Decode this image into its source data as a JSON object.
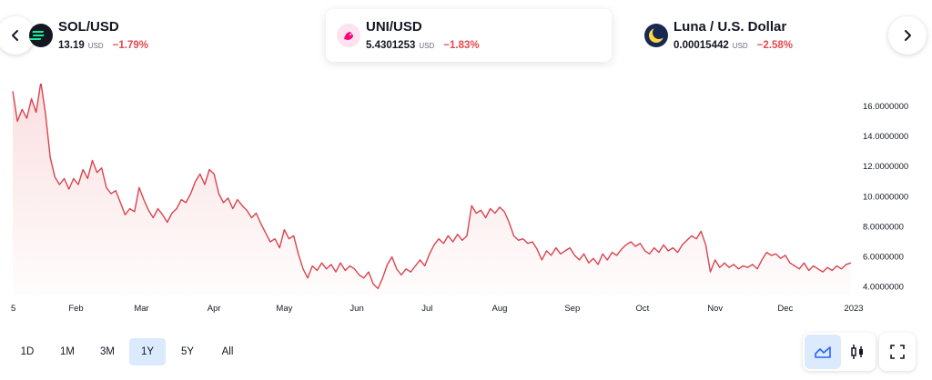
{
  "tickers": [
    {
      "name": "SOL/USD",
      "price": "13.19",
      "currency": "USD",
      "change": "−1.79%",
      "icon": "solana-icon",
      "color": "#131722"
    },
    {
      "name": "UNI/USD",
      "price": "5.4301253",
      "currency": "USD",
      "change": "−1.83%",
      "icon": "uniswap-icon",
      "color": "#ff007a"
    },
    {
      "name": "Luna / U.S. Dollar",
      "price": "0.00015442",
      "currency": "USD",
      "change": "−2.58%",
      "icon": "terra-luna-icon",
      "color": "#172852"
    }
  ],
  "nav": {
    "prev_icon": "chevron-left-icon",
    "next_icon": "chevron-right-icon"
  },
  "range_buttons": [
    "1D",
    "1M",
    "3M",
    "1Y",
    "5Y",
    "All"
  ],
  "active_range": "1Y",
  "tools": {
    "area_icon": "area-chart-icon",
    "candle_icon": "candlestick-icon",
    "fullscreen_icon": "fullscreen-icon"
  },
  "colors": {
    "line": "#d9444e",
    "negative": "#e5484d",
    "active_bg": "#dbeafc"
  },
  "chart_data": {
    "type": "area",
    "title": "",
    "xlabel": "",
    "ylabel": "",
    "ylim": [
      3.5,
      17.5
    ],
    "yticks": [
      4,
      6,
      8,
      10,
      12,
      14,
      16
    ],
    "ytick_labels": [
      "4.0000000",
      "6.0000000",
      "8.0000000",
      "10.0000000",
      "12.0000000",
      "14.0000000",
      "16.0000000"
    ],
    "xlim": [
      5,
      365
    ],
    "xticks": [
      {
        "label": "5",
        "day": 5
      },
      {
        "label": "Feb",
        "day": 32
      },
      {
        "label": "Mar",
        "day": 60
      },
      {
        "label": "Apr",
        "day": 91
      },
      {
        "label": "May",
        "day": 121
      },
      {
        "label": "Jun",
        "day": 152
      },
      {
        "label": "Jul",
        "day": 182
      },
      {
        "label": "Aug",
        "day": 213
      },
      {
        "label": "Sep",
        "day": 244
      },
      {
        "label": "Oct",
        "day": 274
      },
      {
        "label": "Nov",
        "day": 305
      },
      {
        "label": "Dec",
        "day": 335
      },
      {
        "label": "2023",
        "day": 366
      }
    ],
    "series": [
      {
        "values": [
          [
            5,
            17.0
          ],
          [
            7,
            15.0
          ],
          [
            9,
            15.8
          ],
          [
            11,
            15.2
          ],
          [
            13,
            16.5
          ],
          [
            15,
            15.6
          ],
          [
            17,
            17.6
          ],
          [
            19,
            15.5
          ],
          [
            21,
            12.6
          ],
          [
            23,
            11.3
          ],
          [
            25,
            10.8
          ],
          [
            27,
            11.2
          ],
          [
            29,
            10.5
          ],
          [
            31,
            11.2
          ],
          [
            33,
            10.8
          ],
          [
            35,
            11.8
          ],
          [
            37,
            11.2
          ],
          [
            39,
            12.4
          ],
          [
            41,
            11.6
          ],
          [
            43,
            11.9
          ],
          [
            45,
            10.6
          ],
          [
            47,
            10.2
          ],
          [
            49,
            10.4
          ],
          [
            51,
            9.6
          ],
          [
            53,
            8.8
          ],
          [
            55,
            9.2
          ],
          [
            57,
            9.0
          ],
          [
            59,
            10.6
          ],
          [
            61,
            9.8
          ],
          [
            63,
            9.1
          ],
          [
            65,
            8.6
          ],
          [
            67,
            9.2
          ],
          [
            69,
            8.8
          ],
          [
            71,
            8.3
          ],
          [
            73,
            8.9
          ],
          [
            75,
            9.2
          ],
          [
            77,
            9.8
          ],
          [
            79,
            9.6
          ],
          [
            81,
            10.2
          ],
          [
            83,
            11.0
          ],
          [
            85,
            11.5
          ],
          [
            87,
            10.8
          ],
          [
            89,
            11.8
          ],
          [
            91,
            11.5
          ],
          [
            93,
            10.2
          ],
          [
            95,
            9.6
          ],
          [
            97,
            9.9
          ],
          [
            99,
            9.2
          ],
          [
            101,
            9.8
          ],
          [
            103,
            9.4
          ],
          [
            105,
            9.1
          ],
          [
            107,
            8.6
          ],
          [
            109,
            8.9
          ],
          [
            111,
            8.2
          ],
          [
            113,
            7.6
          ],
          [
            115,
            7.0
          ],
          [
            117,
            7.2
          ],
          [
            119,
            6.6
          ],
          [
            121,
            7.8
          ],
          [
            123,
            7.2
          ],
          [
            125,
            7.4
          ],
          [
            127,
            6.2
          ],
          [
            129,
            5.2
          ],
          [
            131,
            4.6
          ],
          [
            133,
            5.4
          ],
          [
            135,
            5.1
          ],
          [
            137,
            5.6
          ],
          [
            139,
            5.2
          ],
          [
            141,
            5.5
          ],
          [
            143,
            5.0
          ],
          [
            145,
            5.6
          ],
          [
            147,
            5.1
          ],
          [
            149,
            5.4
          ],
          [
            151,
            5.2
          ],
          [
            153,
            4.8
          ],
          [
            155,
            4.6
          ],
          [
            157,
            5.0
          ],
          [
            159,
            4.2
          ],
          [
            161,
            3.9
          ],
          [
            163,
            4.6
          ],
          [
            165,
            5.5
          ],
          [
            167,
            6.0
          ],
          [
            169,
            5.2
          ],
          [
            171,
            4.8
          ],
          [
            173,
            5.2
          ],
          [
            175,
            5.0
          ],
          [
            177,
            5.4
          ],
          [
            179,
            5.8
          ],
          [
            181,
            5.4
          ],
          [
            183,
            6.2
          ],
          [
            185,
            6.8
          ],
          [
            187,
            7.2
          ],
          [
            189,
            6.9
          ],
          [
            191,
            7.4
          ],
          [
            193,
            7.0
          ],
          [
            195,
            7.5
          ],
          [
            197,
            7.1
          ],
          [
            199,
            7.4
          ],
          [
            201,
            9.4
          ],
          [
            203,
            8.9
          ],
          [
            205,
            9.1
          ],
          [
            207,
            8.6
          ],
          [
            209,
            9.2
          ],
          [
            211,
            8.9
          ],
          [
            213,
            9.3
          ],
          [
            215,
            9.0
          ],
          [
            217,
            8.3
          ],
          [
            219,
            7.4
          ],
          [
            221,
            7.1
          ],
          [
            223,
            7.2
          ],
          [
            225,
            6.9
          ],
          [
            227,
            7.0
          ],
          [
            229,
            6.5
          ],
          [
            231,
            5.8
          ],
          [
            233,
            6.4
          ],
          [
            235,
            6.1
          ],
          [
            237,
            6.6
          ],
          [
            239,
            6.2
          ],
          [
            241,
            6.4
          ],
          [
            243,
            6.6
          ],
          [
            245,
            6.1
          ],
          [
            247,
            5.8
          ],
          [
            249,
            6.2
          ],
          [
            251,
            5.6
          ],
          [
            253,
            5.9
          ],
          [
            255,
            5.5
          ],
          [
            257,
            6.2
          ],
          [
            259,
            5.8
          ],
          [
            261,
            6.3
          ],
          [
            263,
            6.1
          ],
          [
            265,
            6.5
          ],
          [
            267,
            6.8
          ],
          [
            269,
            7.0
          ],
          [
            271,
            6.7
          ],
          [
            273,
            6.9
          ],
          [
            275,
            6.4
          ],
          [
            277,
            6.2
          ],
          [
            279,
            6.6
          ],
          [
            281,
            6.3
          ],
          [
            283,
            6.8
          ],
          [
            285,
            6.4
          ],
          [
            287,
            6.6
          ],
          [
            289,
            6.3
          ],
          [
            291,
            6.8
          ],
          [
            293,
            7.1
          ],
          [
            295,
            7.4
          ],
          [
            297,
            7.2
          ],
          [
            299,
            7.7
          ],
          [
            301,
            6.8
          ],
          [
            303,
            5.0
          ],
          [
            305,
            5.8
          ],
          [
            307,
            5.3
          ],
          [
            309,
            5.6
          ],
          [
            311,
            5.3
          ],
          [
            313,
            5.5
          ],
          [
            315,
            5.2
          ],
          [
            317,
            5.4
          ],
          [
            319,
            5.3
          ],
          [
            321,
            5.5
          ],
          [
            323,
            5.2
          ],
          [
            325,
            5.8
          ],
          [
            327,
            6.3
          ],
          [
            329,
            6.1
          ],
          [
            331,
            6.2
          ],
          [
            333,
            5.9
          ],
          [
            335,
            6.1
          ],
          [
            337,
            5.6
          ],
          [
            339,
            5.4
          ],
          [
            341,
            5.2
          ],
          [
            343,
            5.6
          ],
          [
            345,
            5.1
          ],
          [
            347,
            5.4
          ],
          [
            349,
            5.2
          ],
          [
            351,
            5.0
          ],
          [
            353,
            5.3
          ],
          [
            355,
            5.1
          ],
          [
            357,
            5.4
          ],
          [
            359,
            5.2
          ],
          [
            361,
            5.5
          ],
          [
            363,
            5.6
          ]
        ]
      }
    ],
    "grid": false
  }
}
